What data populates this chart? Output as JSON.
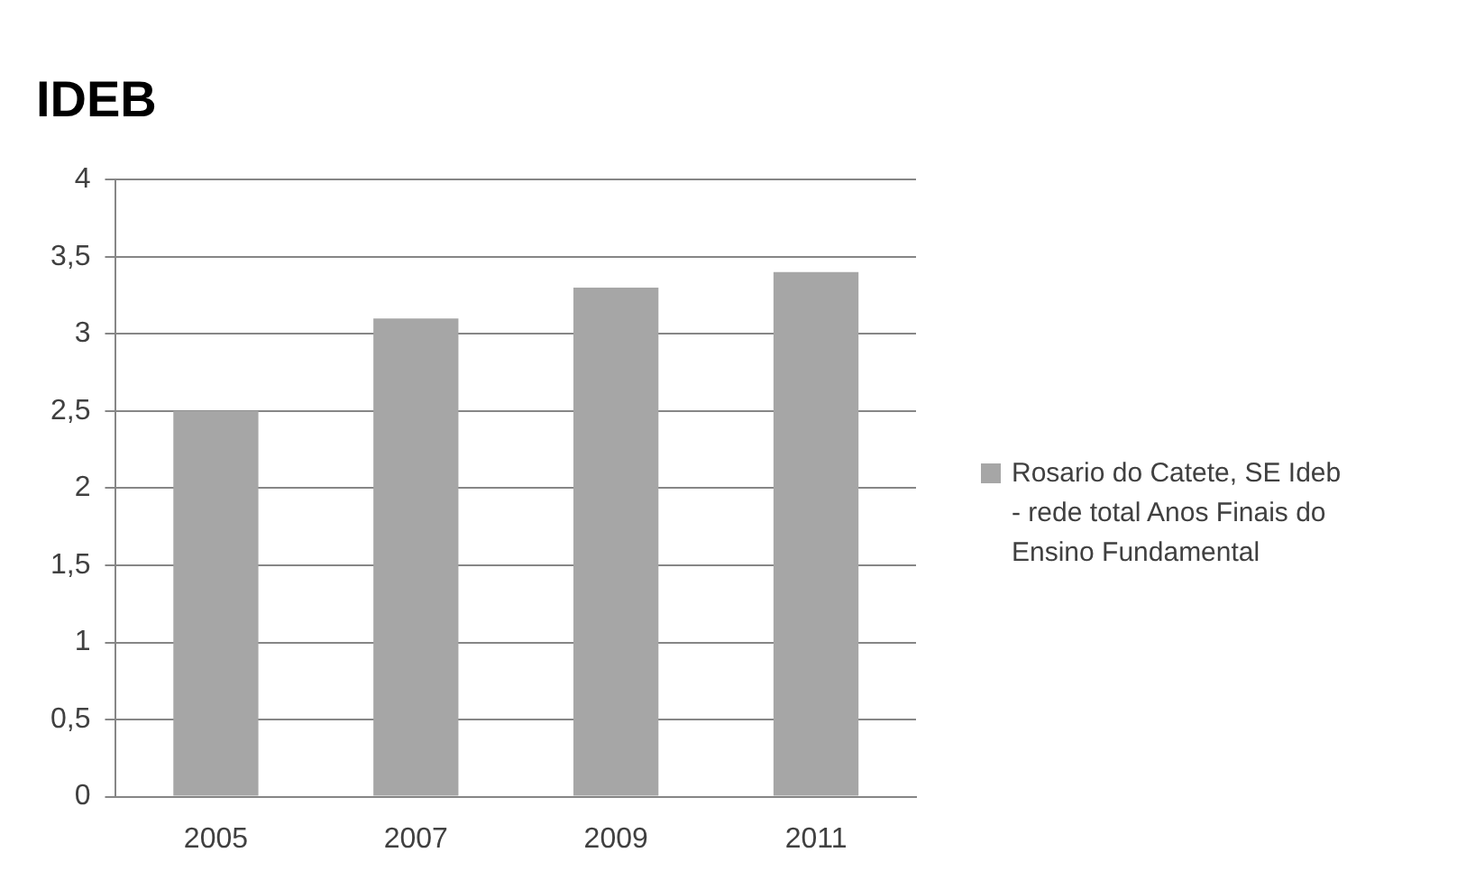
{
  "chart_data": {
    "type": "bar",
    "title": "IDEB",
    "categories": [
      "2005",
      "2007",
      "2009",
      "2011"
    ],
    "series": [
      {
        "name": "Rosario do Catete, SE Ideb - rede total Anos Finais do Ensino Fundamental",
        "color": "#a6a6a6",
        "values": [
          2.5,
          3.1,
          3.3,
          3.4
        ]
      }
    ],
    "ylim": [
      0,
      4
    ],
    "yticks": [
      0,
      {
        "value": 0.5,
        "label": "0,5"
      },
      1,
      {
        "value": 1.5,
        "label": "1,5"
      },
      2,
      {
        "value": 2.5,
        "label": "2,5"
      },
      3,
      {
        "value": 3.5,
        "label": "3,5"
      },
      4
    ],
    "grid": "y",
    "legend": "right"
  }
}
